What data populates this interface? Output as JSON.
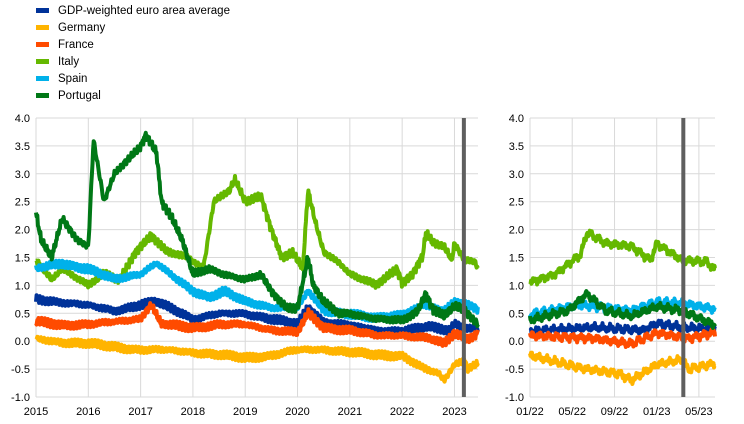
{
  "chart_data": [
    {
      "type": "line",
      "title": "",
      "xlabel": "",
      "ylabel": "",
      "xlim": [
        2015,
        2023.45
      ],
      "ylim": [
        -1.0,
        4.0
      ],
      "yticks": [
        "4.0",
        "3.5",
        "3.0",
        "2.5",
        "2.0",
        "1.5",
        "1.0",
        "0.5",
        "0.0",
        "-0.5",
        "-1.0"
      ],
      "xticks": [
        {
          "v": 2015,
          "label": "2015"
        },
        {
          "v": 2016,
          "label": "2016"
        },
        {
          "v": 2017,
          "label": "2017"
        },
        {
          "v": 2018,
          "label": "2018"
        },
        {
          "v": 2019,
          "label": "2019"
        },
        {
          "v": 2020,
          "label": "2020"
        },
        {
          "v": 2021,
          "label": "2021"
        },
        {
          "v": 2022,
          "label": "2022"
        },
        {
          "v": 2023,
          "label": "2023"
        }
      ],
      "vertical_marker": 2023.18,
      "grid": true
    },
    {
      "type": "line",
      "title": "",
      "xlabel": "",
      "ylabel": "",
      "xlim": [
        2022.0,
        2023.46
      ],
      "ylim": [
        -1.0,
        4.0
      ],
      "yticks": [
        "4.0",
        "3.5",
        "3.0",
        "2.5",
        "2.0",
        "1.5",
        "1.0",
        "0.5",
        "0.0",
        "-0.5",
        "-1.0"
      ],
      "xticks": [
        {
          "v": 2022.0,
          "label": "01/22"
        },
        {
          "v": 2022.333,
          "label": "05/22"
        },
        {
          "v": 2022.667,
          "label": "09/22"
        },
        {
          "v": 2023.0,
          "label": "01/23"
        },
        {
          "v": 2023.333,
          "label": "05/23"
        }
      ],
      "vertical_marker": 2023.21,
      "grid": true
    }
  ],
  "legend": {
    "placement": "top-left"
  },
  "series": [
    {
      "name": "GDP-weighted euro area average",
      "color": "#003299",
      "points": [
        [
          2015.0,
          0.75
        ],
        [
          2015.5,
          0.7
        ],
        [
          2016.0,
          0.65
        ],
        [
          2016.5,
          0.55
        ],
        [
          2017.0,
          0.65
        ],
        [
          2017.3,
          0.7
        ],
        [
          2017.8,
          0.5
        ],
        [
          2018.0,
          0.4
        ],
        [
          2018.5,
          0.5
        ],
        [
          2019.0,
          0.5
        ],
        [
          2019.5,
          0.4
        ],
        [
          2020.0,
          0.3
        ],
        [
          2020.2,
          0.6
        ],
        [
          2020.5,
          0.35
        ],
        [
          2021.0,
          0.3
        ],
        [
          2021.5,
          0.2
        ],
        [
          2022.0,
          0.18
        ],
        [
          2022.5,
          0.25
        ],
        [
          2022.9,
          0.2
        ],
        [
          2023.0,
          0.32
        ],
        [
          2023.2,
          0.25
        ],
        [
          2023.45,
          0.22
        ]
      ]
    },
    {
      "name": "Germany",
      "color": "#FFB400",
      "points": [
        [
          2015.0,
          0.05
        ],
        [
          2015.5,
          -0.02
        ],
        [
          2016.0,
          -0.05
        ],
        [
          2016.5,
          -0.1
        ],
        [
          2017.0,
          -0.15
        ],
        [
          2017.5,
          -0.15
        ],
        [
          2018.0,
          -0.2
        ],
        [
          2018.5,
          -0.25
        ],
        [
          2019.0,
          -0.3
        ],
        [
          2019.5,
          -0.25
        ],
        [
          2020.0,
          -0.15
        ],
        [
          2020.5,
          -0.15
        ],
        [
          2021.0,
          -0.2
        ],
        [
          2021.5,
          -0.25
        ],
        [
          2022.0,
          -0.25
        ],
        [
          2022.4,
          -0.48
        ],
        [
          2022.7,
          -0.58
        ],
        [
          2022.8,
          -0.7
        ],
        [
          2023.0,
          -0.42
        ],
        [
          2023.2,
          -0.33
        ],
        [
          2023.25,
          -0.5
        ],
        [
          2023.45,
          -0.4
        ]
      ]
    },
    {
      "name": "France",
      "color": "#FF4B00",
      "points": [
        [
          2015.0,
          0.35
        ],
        [
          2015.5,
          0.3
        ],
        [
          2016.0,
          0.3
        ],
        [
          2016.5,
          0.35
        ],
        [
          2017.0,
          0.4
        ],
        [
          2017.2,
          0.65
        ],
        [
          2017.4,
          0.3
        ],
        [
          2018.0,
          0.25
        ],
        [
          2018.5,
          0.3
        ],
        [
          2019.0,
          0.3
        ],
        [
          2019.5,
          0.2
        ],
        [
          2020.0,
          0.15
        ],
        [
          2020.2,
          0.5
        ],
        [
          2020.5,
          0.25
        ],
        [
          2021.0,
          0.2
        ],
        [
          2021.5,
          0.1
        ],
        [
          2022.0,
          0.1
        ],
        [
          2022.5,
          0.05
        ],
        [
          2022.8,
          -0.05
        ],
        [
          2023.0,
          0.15
        ],
        [
          2023.25,
          0.05
        ],
        [
          2023.45,
          0.15
        ]
      ]
    },
    {
      "name": "Italy",
      "color": "#65B800",
      "points": [
        [
          2015.0,
          1.45
        ],
        [
          2015.3,
          1.1
        ],
        [
          2015.5,
          1.3
        ],
        [
          2016.0,
          1.0
        ],
        [
          2016.3,
          1.2
        ],
        [
          2016.6,
          1.1
        ],
        [
          2016.9,
          1.6
        ],
        [
          2017.2,
          1.9
        ],
        [
          2017.5,
          1.6
        ],
        [
          2017.9,
          1.5
        ],
        [
          2018.2,
          1.3
        ],
        [
          2018.4,
          2.5
        ],
        [
          2018.7,
          2.7
        ],
        [
          2018.8,
          2.9
        ],
        [
          2019.0,
          2.5
        ],
        [
          2019.3,
          2.6
        ],
        [
          2019.5,
          2.0
        ],
        [
          2019.7,
          1.5
        ],
        [
          2019.9,
          1.6
        ],
        [
          2020.1,
          1.3
        ],
        [
          2020.2,
          2.7
        ],
        [
          2020.35,
          2.1
        ],
        [
          2020.5,
          1.6
        ],
        [
          2020.8,
          1.4
        ],
        [
          2021.0,
          1.2
        ],
        [
          2021.5,
          1.0
        ],
        [
          2021.9,
          1.3
        ],
        [
          2022.0,
          1.05
        ],
        [
          2022.2,
          1.2
        ],
        [
          2022.4,
          1.55
        ],
        [
          2022.45,
          1.95
        ],
        [
          2022.6,
          1.75
        ],
        [
          2022.8,
          1.7
        ],
        [
          2022.95,
          1.45
        ],
        [
          2023.0,
          1.75
        ],
        [
          2023.2,
          1.45
        ],
        [
          2023.4,
          1.42
        ],
        [
          2023.45,
          1.28
        ]
      ]
    },
    {
      "name": "Spain",
      "color": "#00B1EA",
      "points": [
        [
          2015.0,
          1.3
        ],
        [
          2015.5,
          1.4
        ],
        [
          2016.0,
          1.3
        ],
        [
          2016.5,
          1.1
        ],
        [
          2017.0,
          1.2
        ],
        [
          2017.3,
          1.4
        ],
        [
          2017.7,
          1.1
        ],
        [
          2018.0,
          0.9
        ],
        [
          2018.3,
          0.8
        ],
        [
          2018.6,
          0.9
        ],
        [
          2019.0,
          0.7
        ],
        [
          2019.5,
          0.6
        ],
        [
          2020.0,
          0.6
        ],
        [
          2020.2,
          0.9
        ],
        [
          2020.5,
          0.55
        ],
        [
          2021.0,
          0.5
        ],
        [
          2021.5,
          0.4
        ],
        [
          2022.0,
          0.48
        ],
        [
          2022.4,
          0.65
        ],
        [
          2022.8,
          0.55
        ],
        [
          2023.0,
          0.7
        ],
        [
          2023.2,
          0.68
        ],
        [
          2023.45,
          0.58
        ]
      ]
    },
    {
      "name": "Portugal",
      "color": "#007816",
      "points": [
        [
          2015.0,
          2.3
        ],
        [
          2015.1,
          1.8
        ],
        [
          2015.3,
          1.5
        ],
        [
          2015.5,
          2.2
        ],
        [
          2015.8,
          1.8
        ],
        [
          2016.0,
          1.7
        ],
        [
          2016.1,
          3.6
        ],
        [
          2016.3,
          2.5
        ],
        [
          2016.5,
          3.0
        ],
        [
          2016.7,
          3.2
        ],
        [
          2017.0,
          3.5
        ],
        [
          2017.1,
          3.7
        ],
        [
          2017.3,
          3.4
        ],
        [
          2017.4,
          2.5
        ],
        [
          2017.6,
          2.2
        ],
        [
          2017.8,
          1.8
        ],
        [
          2018.0,
          1.2
        ],
        [
          2018.3,
          1.3
        ],
        [
          2018.6,
          1.2
        ],
        [
          2019.0,
          1.1
        ],
        [
          2019.3,
          1.2
        ],
        [
          2019.5,
          0.9
        ],
        [
          2019.8,
          0.6
        ],
        [
          2020.0,
          0.6
        ],
        [
          2020.2,
          1.5
        ],
        [
          2020.3,
          1.0
        ],
        [
          2020.5,
          0.7
        ],
        [
          2020.8,
          0.5
        ],
        [
          2021.0,
          0.5
        ],
        [
          2021.5,
          0.4
        ],
        [
          2022.0,
          0.38
        ],
        [
          2022.3,
          0.55
        ],
        [
          2022.45,
          0.85
        ],
        [
          2022.6,
          0.55
        ],
        [
          2022.8,
          0.45
        ],
        [
          2023.0,
          0.62
        ],
        [
          2023.2,
          0.55
        ],
        [
          2023.3,
          0.45
        ],
        [
          2023.45,
          0.3
        ]
      ]
    }
  ]
}
